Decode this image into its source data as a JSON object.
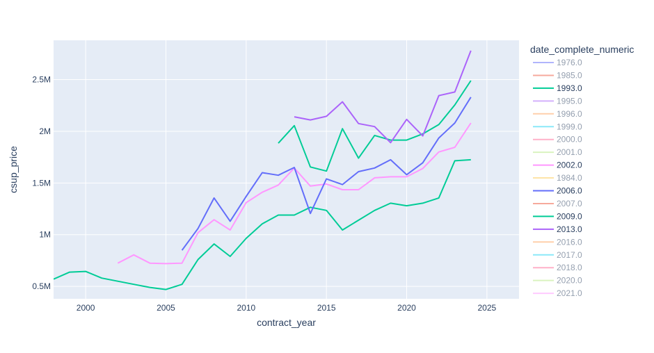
{
  "chart_data": {
    "type": "line",
    "xlabel": "contract_year",
    "ylabel": "csup_price",
    "xlim": [
      1998,
      2027
    ],
    "ylim": [
      380000,
      2880000
    ],
    "x_ticks": [
      2000,
      2005,
      2010,
      2015,
      2020,
      2025
    ],
    "x_tick_labels": [
      "2000",
      "2005",
      "2010",
      "2015",
      "2020",
      "2025"
    ],
    "y_ticks": [
      500000,
      1000000,
      1500000,
      2000000,
      2500000
    ],
    "y_tick_labels": [
      "0.5M",
      "1M",
      "1.5M",
      "2M",
      "2.5M"
    ],
    "grid": true,
    "legend": {
      "title": "date_complete_numeric",
      "placement": "right",
      "entries": [
        {
          "label": "1976.0",
          "color": "#636efa",
          "visible": false
        },
        {
          "label": "1985.0",
          "color": "#ef553b",
          "visible": false
        },
        {
          "label": "1993.0",
          "color": "#00cc96",
          "visible": true
        },
        {
          "label": "1995.0",
          "color": "#ab63fa",
          "visible": false
        },
        {
          "label": "1996.0",
          "color": "#ffa15a",
          "visible": false
        },
        {
          "label": "1999.0",
          "color": "#19d3f3",
          "visible": false
        },
        {
          "label": "2000.0",
          "color": "#ff6692",
          "visible": false
        },
        {
          "label": "2001.0",
          "color": "#b6e880",
          "visible": false
        },
        {
          "label": "2002.0",
          "color": "#ff97ff",
          "visible": true
        },
        {
          "label": "1984.0",
          "color": "#fecb52",
          "visible": false
        },
        {
          "label": "2006.0",
          "color": "#636efa",
          "visible": true
        },
        {
          "label": "2007.0",
          "color": "#ef553b",
          "visible": false
        },
        {
          "label": "2009.0",
          "color": "#00cc96",
          "visible": true
        },
        {
          "label": "2013.0",
          "color": "#ab63fa",
          "visible": true
        },
        {
          "label": "2016.0",
          "color": "#ffa15a",
          "visible": false
        },
        {
          "label": "2017.0",
          "color": "#19d3f3",
          "visible": false
        },
        {
          "label": "2018.0",
          "color": "#ff6692",
          "visible": false
        },
        {
          "label": "2020.0",
          "color": "#b6e880",
          "visible": false
        },
        {
          "label": "2021.0",
          "color": "#ff97ff",
          "visible": false
        }
      ]
    },
    "series": [
      {
        "name": "1993.0",
        "color": "#00cc96",
        "x": [
          1998,
          1999,
          2000,
          2001,
          2002,
          2003,
          2004,
          2005,
          2006,
          2007,
          2008,
          2009,
          2010,
          2011,
          2012,
          2013,
          2014,
          2015,
          2016,
          2017,
          2018,
          2019,
          2020,
          2021,
          2022,
          2023,
          2024
        ],
        "y": [
          570000,
          638000,
          645000,
          580000,
          550000,
          520000,
          490000,
          470000,
          520000,
          760000,
          910000,
          790000,
          965000,
          1105000,
          1190000,
          1190000,
          1265000,
          1235000,
          1045000,
          1140000,
          1235000,
          1305000,
          1280000,
          1305000,
          1355000,
          1715000,
          1725000
        ]
      },
      {
        "name": "2002.0",
        "color": "#ff97ff",
        "x": [
          2002,
          2003,
          2004,
          2005,
          2006,
          2007,
          2008,
          2009,
          2010,
          2011,
          2012,
          2013,
          2014,
          2015,
          2016,
          2017,
          2018,
          2019,
          2020,
          2021,
          2022,
          2023,
          2024
        ],
        "y": [
          725000,
          805000,
          725000,
          720000,
          725000,
          1020000,
          1145000,
          1045000,
          1310000,
          1410000,
          1480000,
          1645000,
          1470000,
          1490000,
          1435000,
          1435000,
          1550000,
          1560000,
          1560000,
          1640000,
          1800000,
          1845000,
          2080000
        ]
      },
      {
        "name": "2006.0",
        "color": "#636efa",
        "x": [
          2006,
          2007,
          2008,
          2009,
          2010,
          2011,
          2012,
          2013,
          2014,
          2015,
          2016,
          2017,
          2018,
          2019,
          2020,
          2021,
          2022,
          2023,
          2024
        ],
        "y": [
          850000,
          1060000,
          1355000,
          1130000,
          1370000,
          1600000,
          1575000,
          1650000,
          1205000,
          1540000,
          1485000,
          1610000,
          1645000,
          1725000,
          1580000,
          1695000,
          1935000,
          2080000,
          2330000
        ]
      },
      {
        "name": "2009.0",
        "color": "#00cc96",
        "x": [
          2012,
          2013,
          2014,
          2015,
          2016,
          2017,
          2018,
          2019,
          2020,
          2021,
          2022,
          2023,
          2024
        ],
        "y": [
          1885000,
          2055000,
          1655000,
          1615000,
          2025000,
          1740000,
          1960000,
          1915000,
          1915000,
          1975000,
          2065000,
          2255000,
          2490000
        ]
      },
      {
        "name": "2013.0",
        "color": "#ab63fa",
        "x": [
          2013,
          2014,
          2015,
          2016,
          2017,
          2018,
          2019,
          2020,
          2021,
          2022,
          2023,
          2024
        ],
        "y": [
          2140000,
          2110000,
          2145000,
          2285000,
          2075000,
          2045000,
          1890000,
          2115000,
          1955000,
          2345000,
          2380000,
          2780000
        ]
      }
    ]
  }
}
